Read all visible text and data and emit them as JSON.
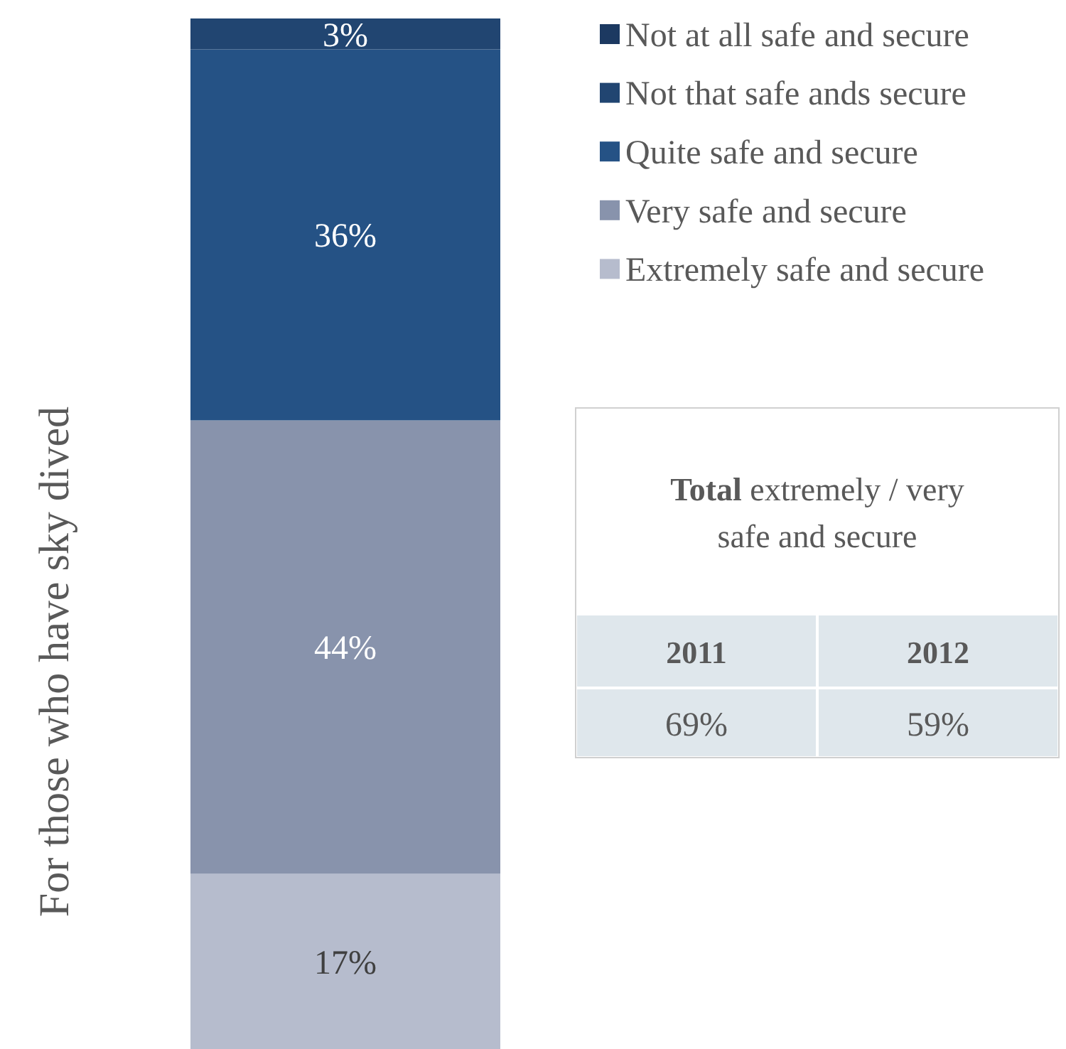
{
  "chart_data": [
    {
      "type": "bar",
      "stacked": true,
      "categories": [
        null
      ],
      "ylabel": "For those who have sky dived",
      "legend": "right",
      "series": [
        {
          "name": "Extremely safe and secure",
          "color": "#b6bccd",
          "values": [
            17
          ],
          "value_labels": [
            "17%"
          ]
        },
        {
          "name": "Very safe and secure",
          "color": "#8893ac",
          "values": [
            44
          ],
          "value_labels": [
            "44%"
          ]
        },
        {
          "name": "Quite safe and secure",
          "color": "#255285",
          "values": [
            36
          ],
          "value_labels": [
            "36%"
          ]
        },
        {
          "name": "Not that safe ands secure",
          "color": "#214571",
          "values": [
            3
          ],
          "value_labels": [
            "3%"
          ]
        },
        {
          "name": "Not at all safe and secure",
          "color": "#1c3961",
          "values": [
            null
          ],
          "value_labels": [
            null
          ]
        }
      ]
    },
    {
      "type": "other",
      "title": "Total extremely / very safe and secure",
      "categories": [
        "2011",
        "2012"
      ],
      "value_labels": [
        "69%",
        "59%"
      ]
    }
  ]
}
